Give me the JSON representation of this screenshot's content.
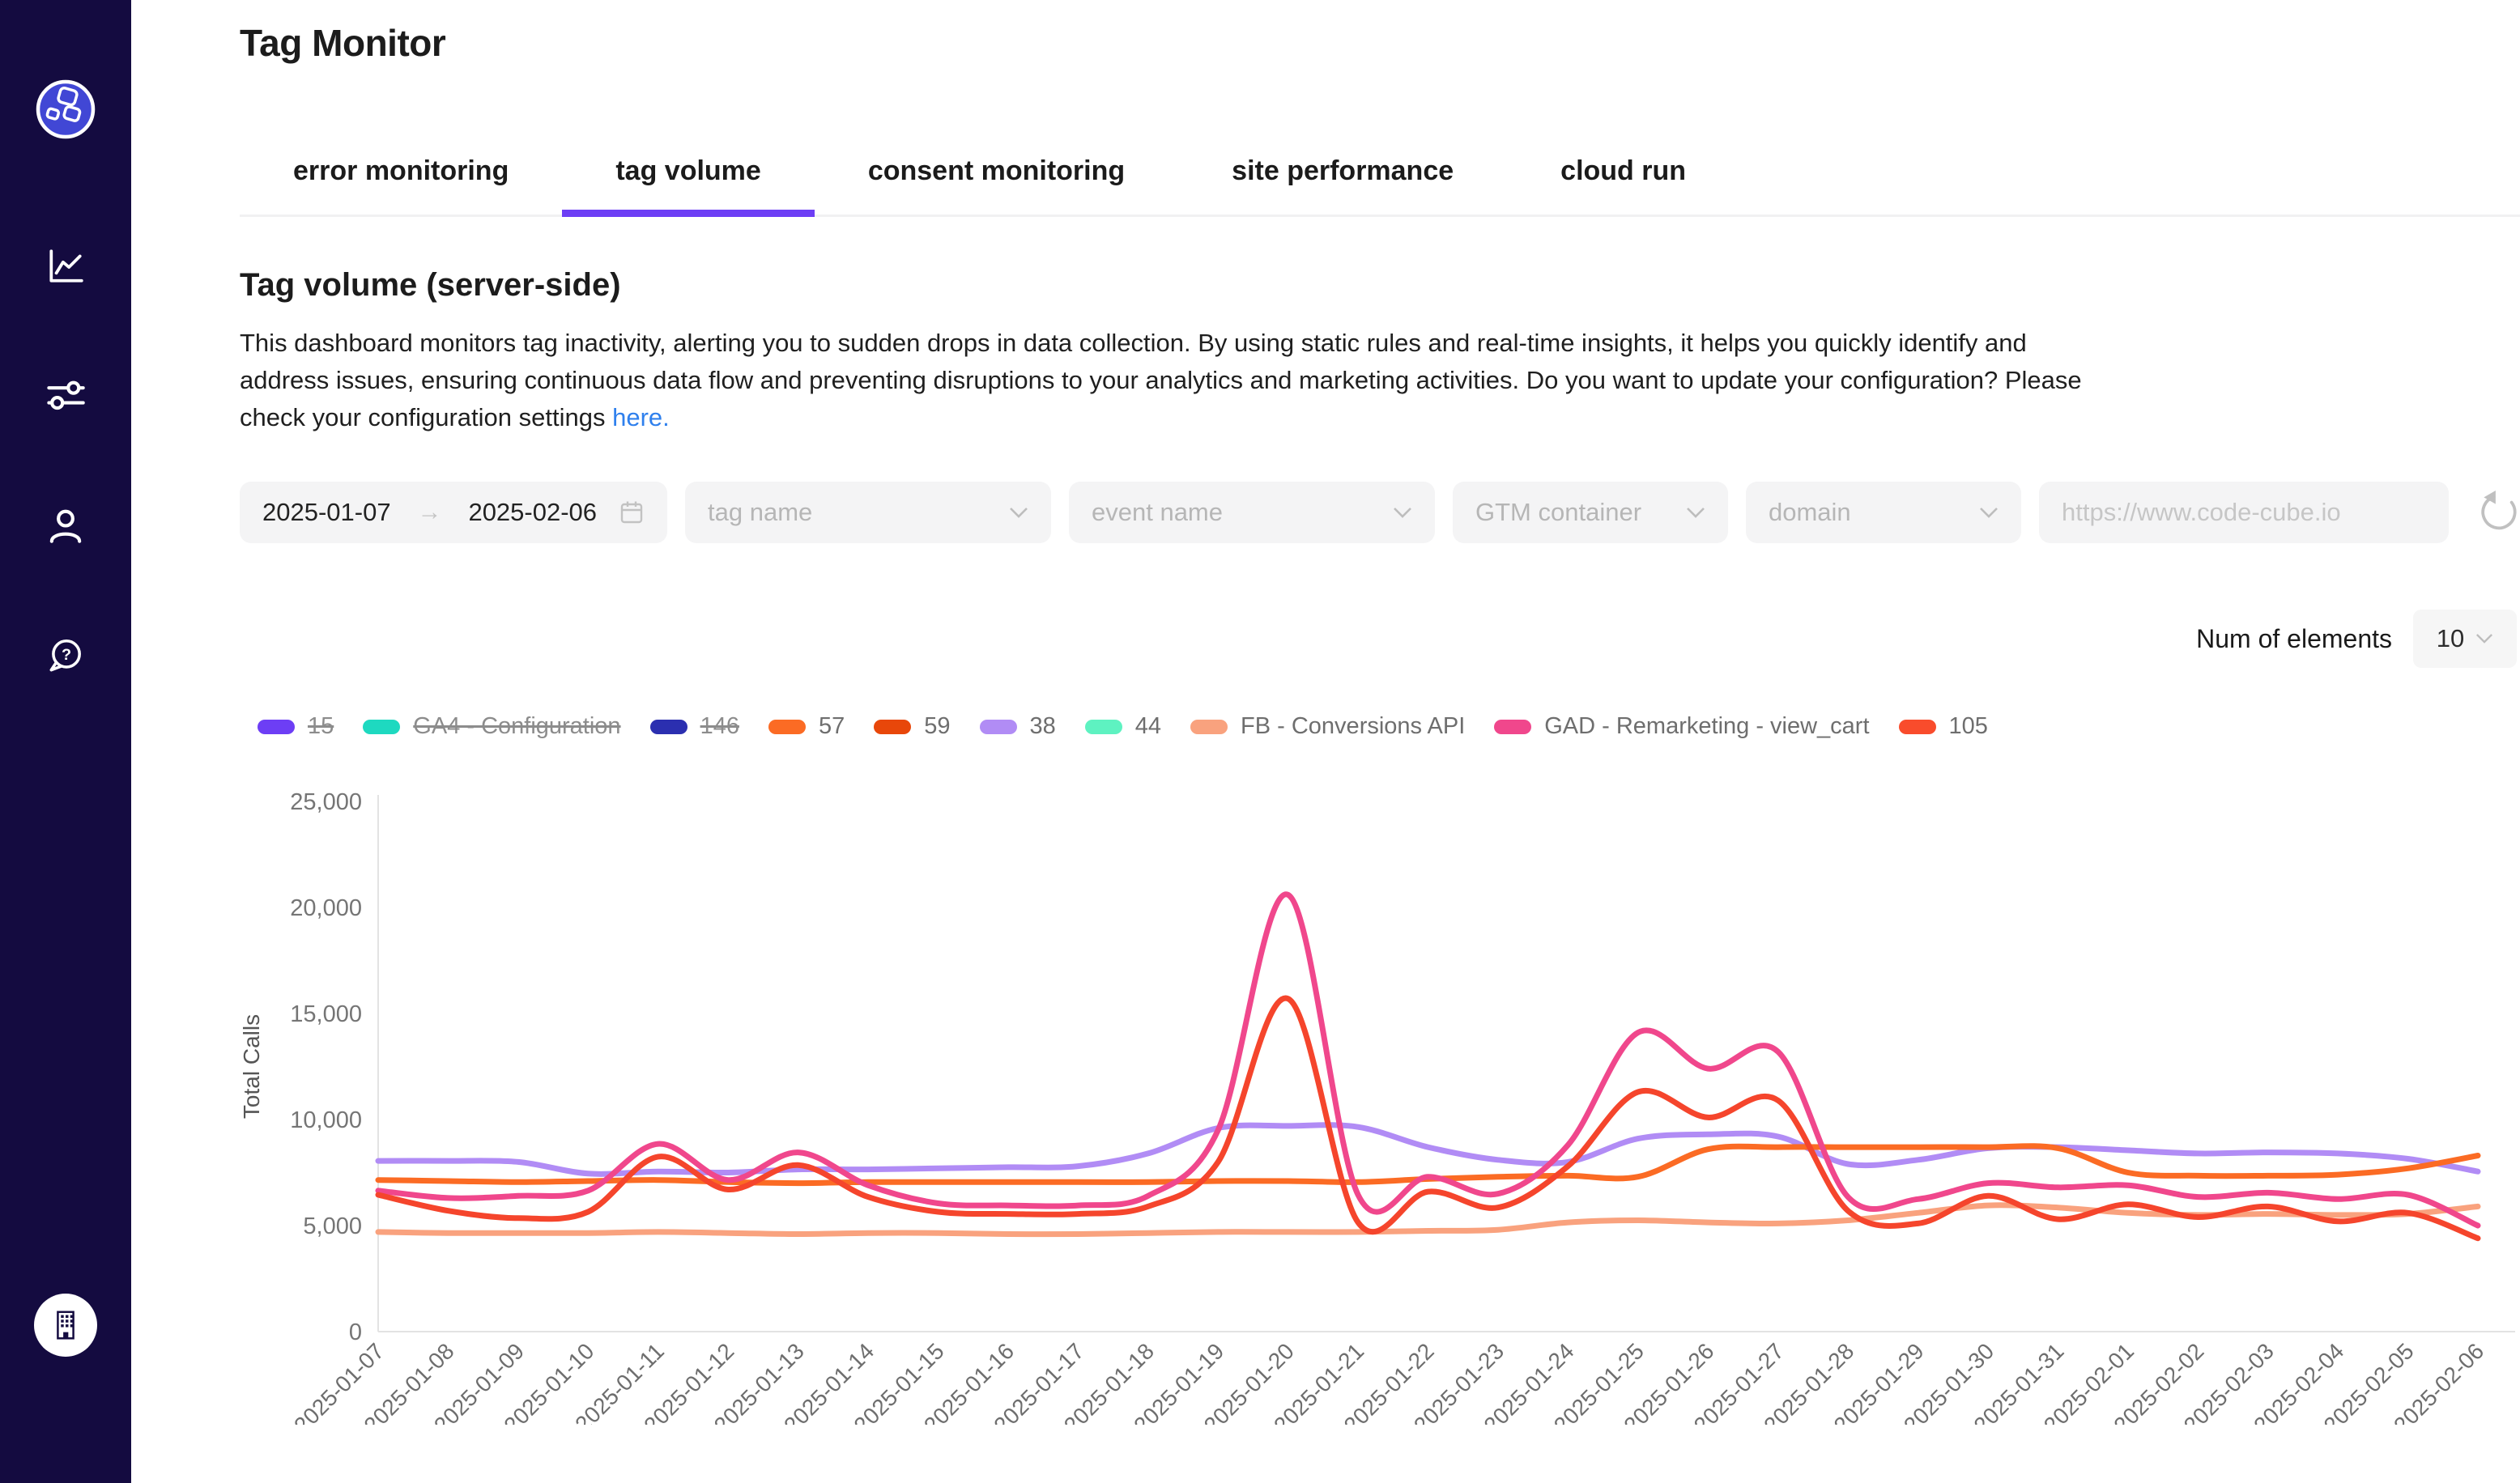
{
  "header": {
    "title": "Tag Monitor"
  },
  "tabs": [
    {
      "label": "error monitoring",
      "active": false
    },
    {
      "label": "tag volume",
      "active": true
    },
    {
      "label": "consent monitoring",
      "active": false
    },
    {
      "label": "site performance",
      "active": false
    },
    {
      "label": "cloud run",
      "active": false
    }
  ],
  "section": {
    "heading": "Tag volume (server-side)",
    "description": "This dashboard monitors tag inactivity, alerting you to sudden drops in data collection. By using static rules and real-time insights, it helps you quickly identify and address issues, ensuring continuous data flow and preventing disruptions to your analytics and marketing activities. Do you want to update your configuration? Please check your configuration settings ",
    "link_text": "here."
  },
  "filters": {
    "date_range": {
      "start": "2025-01-07",
      "separator": "→",
      "end": "2025-02-06"
    },
    "dropdowns": [
      {
        "placeholder": "tag name"
      },
      {
        "placeholder": "event name"
      },
      {
        "placeholder": "GTM container"
      },
      {
        "placeholder": "domain"
      }
    ],
    "url_input": {
      "placeholder": "https://www.code-cube.io",
      "value": ""
    }
  },
  "num_of_elements": {
    "label": "Num of elements",
    "value": "10"
  },
  "accent_color": "#6d3ef5",
  "chart_data": {
    "type": "line",
    "title": "",
    "xlabel": "",
    "ylabel": "Total Calls",
    "ylim": [
      0,
      25000
    ],
    "yticks": [
      0,
      5000,
      10000,
      15000,
      20000,
      25000
    ],
    "grid": false,
    "legend_position": "top",
    "legend": [
      {
        "label": "15",
        "color": "#6d3ef5",
        "disabled": true
      },
      {
        "label": "GA4 - Configuration",
        "color": "#1ed9c0",
        "disabled": true
      },
      {
        "label": "146",
        "color": "#2b2fb0",
        "disabled": true
      },
      {
        "label": "57",
        "color": "#fb6b24",
        "disabled": false
      },
      {
        "label": "59",
        "color": "#e8470a",
        "disabled": false
      },
      {
        "label": "38",
        "color": "#b18cf5",
        "disabled": false
      },
      {
        "label": "44",
        "color": "#5ef2c1",
        "disabled": false
      },
      {
        "label": "FB - Conversions API",
        "color": "#f9a27e",
        "disabled": false
      },
      {
        "label": "GAD - Remarketing - view_cart",
        "color": "#f0478c",
        "disabled": false
      },
      {
        "label": "105",
        "color": "#f94c2c",
        "disabled": false
      }
    ],
    "x": [
      "2025-01-07",
      "2025-01-08",
      "2025-01-09",
      "2025-01-10",
      "2025-01-11",
      "2025-01-12",
      "2025-01-13",
      "2025-01-14",
      "2025-01-15",
      "2025-01-16",
      "2025-01-17",
      "2025-01-18",
      "2025-01-19",
      "2025-01-20",
      "2025-01-21",
      "2025-01-22",
      "2025-01-23",
      "2025-01-24",
      "2025-01-25",
      "2025-01-26",
      "2025-01-27",
      "2025-01-28",
      "2025-01-29",
      "2025-01-30",
      "2025-01-31",
      "2025-02-01",
      "2025-02-02",
      "2025-02-03",
      "2025-02-04",
      "2025-02-05",
      "2025-02-06"
    ],
    "series": [
      {
        "name": "38",
        "color": "#b18cf5",
        "values": [
          8050,
          8050,
          8000,
          7450,
          7550,
          7500,
          7650,
          7650,
          7700,
          7750,
          7800,
          8400,
          9600,
          9700,
          9650,
          8700,
          8100,
          8000,
          9100,
          9300,
          9200,
          7900,
          8100,
          8650,
          8700,
          8550,
          8400,
          8450,
          8400,
          8150,
          7550
        ]
      },
      {
        "name": "57",
        "color": "#fb6b24",
        "values": [
          7150,
          7100,
          7050,
          7100,
          7150,
          7050,
          7000,
          7050,
          7050,
          7050,
          7050,
          7050,
          7100,
          7100,
          7050,
          7200,
          7300,
          7350,
          7300,
          8600,
          8700,
          8700,
          8700,
          8700,
          8650,
          7500,
          7350,
          7350,
          7400,
          7700,
          8300
        ]
      },
      {
        "name": "FB - Conversions API",
        "color": "#f9a27e",
        "values": [
          4700,
          4650,
          4650,
          4650,
          4700,
          4650,
          4600,
          4650,
          4650,
          4600,
          4600,
          4650,
          4700,
          4700,
          4700,
          4750,
          4800,
          5150,
          5250,
          5150,
          5100,
          5250,
          5600,
          5950,
          5850,
          5600,
          5500,
          5550,
          5500,
          5550,
          5900
        ]
      },
      {
        "name": "GAD - Remarketing - view_cart",
        "color": "#f0478c",
        "values": [
          6650,
          6300,
          6400,
          6650,
          8850,
          7150,
          8450,
          6900,
          6050,
          5950,
          5950,
          6400,
          9500,
          20600,
          6450,
          7300,
          6500,
          8800,
          14100,
          12400,
          13200,
          6350,
          6250,
          7000,
          6800,
          6900,
          6350,
          6550,
          6250,
          6450,
          5000
        ]
      },
      {
        "name": "105",
        "color": "#f5452c",
        "values": [
          6450,
          5700,
          5350,
          5650,
          8250,
          6700,
          7850,
          6350,
          5650,
          5550,
          5550,
          5900,
          8000,
          15700,
          5150,
          6600,
          5850,
          7800,
          11300,
          10100,
          10900,
          5700,
          5100,
          6400,
          5300,
          6000,
          5400,
          5900,
          5200,
          5600,
          4400
        ]
      }
    ]
  }
}
